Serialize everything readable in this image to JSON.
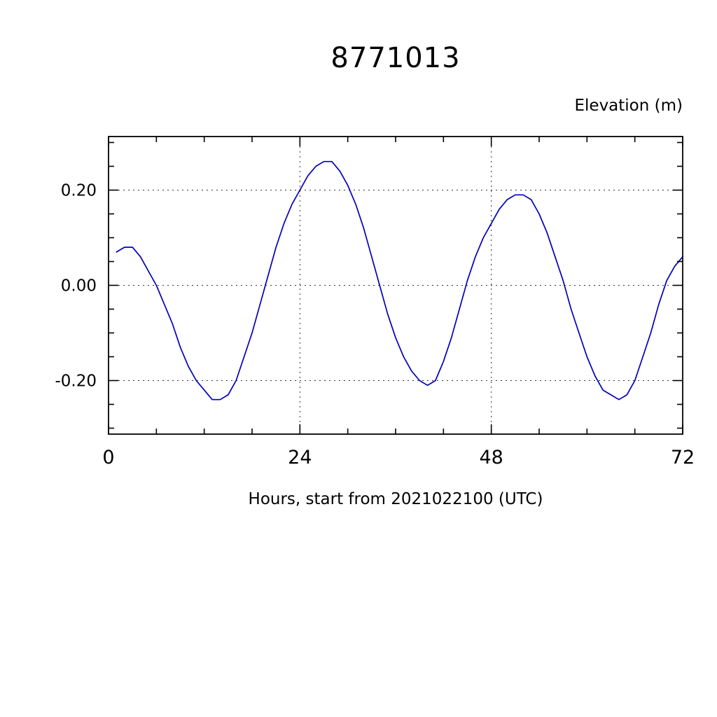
{
  "title": "8771013",
  "chart_data": {
    "type": "line",
    "title": "8771013",
    "ylabel": "Elevation (m)",
    "xlabel": "Hours, start from 2021022100 (UTC)",
    "xlim": [
      0,
      72
    ],
    "ylim": [
      -0.3125,
      0.3125
    ],
    "x_ticks": [
      0,
      24,
      48,
      72
    ],
    "x_tick_labels": [
      "0",
      "24",
      "48",
      "72"
    ],
    "x_minor_step": 6,
    "y_ticks": [
      -0.2,
      0.0,
      0.2
    ],
    "y_tick_labels": [
      "-0.20",
      "0.00",
      "0.20"
    ],
    "y_minor_step": 0.05,
    "grid": true,
    "grid_style": "dashed",
    "line_color": "#0000bb",
    "frame_color": "#000000",
    "legend": "none",
    "series": [
      {
        "name": "elevation",
        "x": [
          1,
          2,
          3,
          4,
          5,
          6,
          7,
          8,
          9,
          10,
          11,
          12,
          13,
          14,
          15,
          16,
          17,
          18,
          19,
          20,
          21,
          22,
          23,
          24,
          25,
          26,
          27,
          28,
          29,
          30,
          31,
          32,
          33,
          34,
          35,
          36,
          37,
          38,
          39,
          40,
          41,
          42,
          43,
          44,
          45,
          46,
          47,
          48,
          49,
          50,
          51,
          52,
          53,
          54,
          55,
          56,
          57,
          58,
          59,
          60,
          61,
          62,
          63,
          64,
          65,
          66,
          67,
          68,
          69,
          70,
          71,
          72
        ],
        "y": [
          0.07,
          0.08,
          0.08,
          0.06,
          0.03,
          0.0,
          -0.04,
          -0.08,
          -0.13,
          -0.17,
          -0.2,
          -0.22,
          -0.24,
          -0.24,
          -0.23,
          -0.2,
          -0.15,
          -0.1,
          -0.04,
          0.02,
          0.08,
          0.13,
          0.17,
          0.2,
          0.23,
          0.25,
          0.26,
          0.26,
          0.24,
          0.21,
          0.17,
          0.12,
          0.06,
          0.0,
          -0.06,
          -0.11,
          -0.15,
          -0.18,
          -0.2,
          -0.21,
          -0.2,
          -0.16,
          -0.11,
          -0.05,
          0.01,
          0.06,
          0.1,
          0.13,
          0.16,
          0.18,
          0.19,
          0.19,
          0.18,
          0.15,
          0.11,
          0.06,
          0.01,
          -0.05,
          -0.1,
          -0.15,
          -0.19,
          -0.22,
          -0.23,
          -0.24,
          -0.23,
          -0.2,
          -0.15,
          -0.1,
          -0.04,
          0.01,
          0.04,
          0.06
        ]
      }
    ]
  }
}
